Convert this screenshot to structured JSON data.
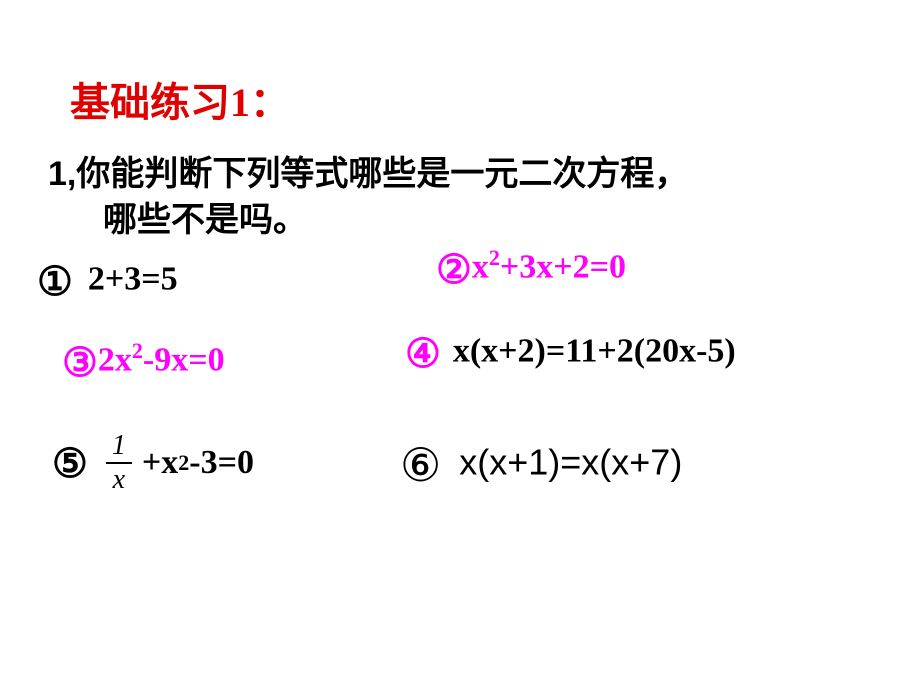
{
  "title": "基础练习1：",
  "question_line1": "1,你能判断下列等式哪些是一元二次方程，",
  "question_line2": "哪些不是吗。",
  "items": {
    "item1_num": "①",
    "item1_eq": "2+3=5",
    "item2_num": "②",
    "item2_eq_before_sup": "x",
    "item2_sup": "2",
    "item2_eq_after_sup": "+3x+2=0",
    "item3_num": "③",
    "item3_eq_before_sup": "2x",
    "item3_sup": "2",
    "item3_eq_after_sup": "-9x=0",
    "item4_num": "④",
    "item4_eq": "x(x+2)=11+2(20x-5)",
    "item5_num": "⑤",
    "item5_frac_top": "1",
    "item5_frac_bot": "x",
    "item5_rest_before_sup": "+x",
    "item5_sup": "2",
    "item5_rest_after_sup": "-3=0",
    "item6_num": "⑥",
    "item6_eq": "x(x+1)=x(x+7)"
  },
  "colors": {
    "title_color": "#e00000",
    "highlight_color": "#ff00ff",
    "text_color": "#000000",
    "background": "#ffffff"
  }
}
